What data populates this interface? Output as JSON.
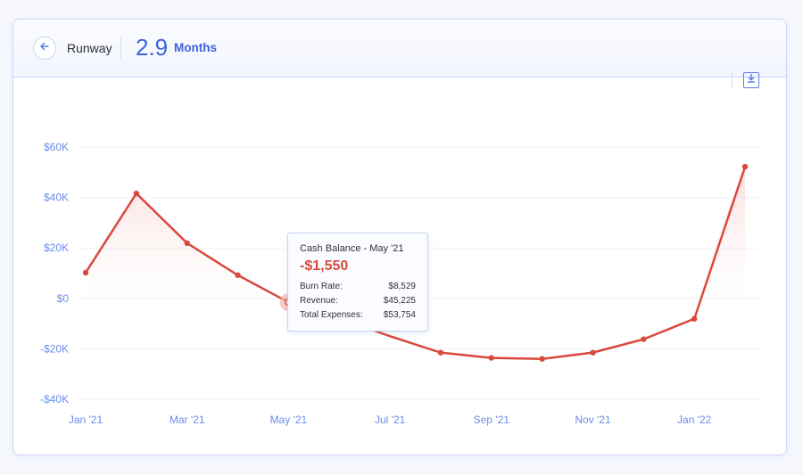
{
  "header": {
    "back_icon": "arrow-left-icon",
    "title": "Runway",
    "metric_value": "2.9",
    "metric_unit": "Months"
  },
  "toolbar": {
    "download_icon": "download-icon"
  },
  "tooltip": {
    "title": "Cash Balance - May '21",
    "value": "-$1,550",
    "rows": [
      {
        "label": "Burn Rate:",
        "value": "$8,529"
      },
      {
        "label": "Revenue:",
        "value": "$45,225"
      },
      {
        "label": "Total Expenses:",
        "value": "$53,754"
      }
    ]
  },
  "colors": {
    "accent": "#3b63dd",
    "line": "#d94a3d",
    "axis_text": "#6a8de8",
    "grid": "#eef1fb"
  },
  "chart_data": {
    "type": "line",
    "title": "Runway - Cash Balance",
    "xlabel": "",
    "ylabel": "",
    "x": [
      "Jan '21",
      "Feb '21",
      "Mar '21",
      "Apr '21",
      "May '21",
      "Jun '21",
      "Jul '21",
      "Aug '21",
      "Sep '21",
      "Oct '21",
      "Nov '21",
      "Dec '21",
      "Jan '22",
      "Feb '22"
    ],
    "x_tick_labels": [
      "Jan '21",
      "Mar '21",
      "May '21",
      "Jul '21",
      "Sep '21",
      "Nov '21",
      "Jan '22"
    ],
    "series": [
      {
        "name": "Cash Balance",
        "values": [
          10200,
          41600,
          21900,
          9200,
          -1550,
          -8000,
          -15000,
          -21500,
          -23600,
          -24000,
          -21500,
          -16200,
          -8100,
          52200
        ]
      }
    ],
    "y_tick_labels": [
      "$60K",
      "$40K",
      "$20K",
      "$0",
      "-$20K",
      "-$40K"
    ],
    "y_ticks": [
      60000,
      40000,
      20000,
      0,
      -20000,
      -40000
    ],
    "ylim": [
      -40000,
      60000
    ],
    "grid": true,
    "legend": "none",
    "highlighted_point": {
      "x": "May '21",
      "value": -1550
    }
  }
}
